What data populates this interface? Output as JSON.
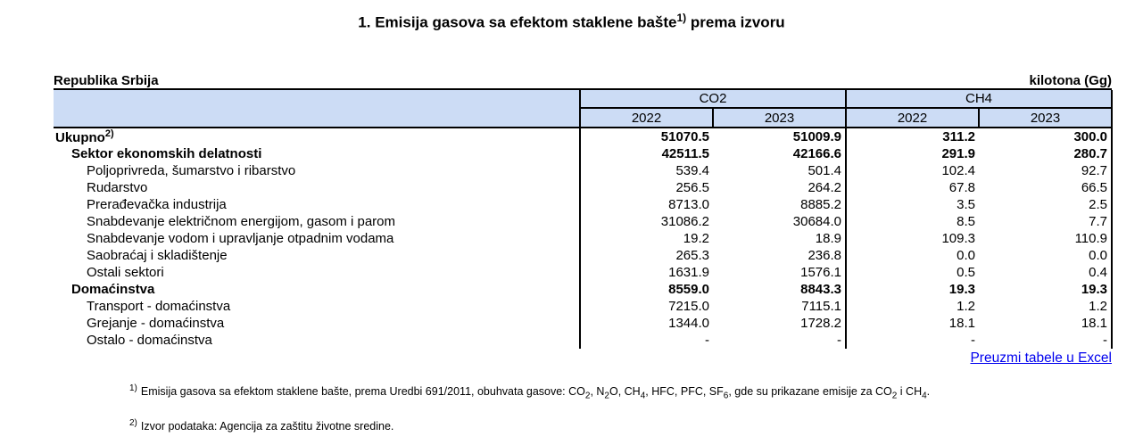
{
  "title": {
    "text": "1. Emisija gasova sa efektom staklene bašte",
    "sup": "1)",
    "suffix": " prema izvoru"
  },
  "colors": {
    "header_bg": "#ccdcf5",
    "link": "#0000ee",
    "border": "#000000"
  },
  "table": {
    "region_label": "Republika Srbija",
    "unit_label": "kilotona (Gg)",
    "groups": [
      {
        "label": "CO2",
        "years": [
          "2022",
          "2023"
        ]
      },
      {
        "label": "CH4",
        "years": [
          "2022",
          "2023"
        ]
      }
    ],
    "rows": [
      {
        "label": "Ukupno",
        "sup": "2)",
        "indent": 0,
        "bold": true,
        "values": [
          "51070.5",
          "51009.9",
          "311.2",
          "300.0"
        ]
      },
      {
        "label": "Sektor ekonomskih delatnosti",
        "indent": 1,
        "bold": true,
        "values": [
          "42511.5",
          "42166.6",
          "291.9",
          "280.7"
        ]
      },
      {
        "label": "Poljoprivreda, šumarstvo i ribarstvo",
        "indent": 2,
        "bold": false,
        "values": [
          "539.4",
          "501.4",
          "102.4",
          "92.7"
        ]
      },
      {
        "label": "Rudarstvo",
        "indent": 2,
        "bold": false,
        "values": [
          "256.5",
          "264.2",
          "67.8",
          "66.5"
        ]
      },
      {
        "label": "Prerađevačka industrija",
        "indent": 2,
        "bold": false,
        "values": [
          "8713.0",
          "8885.2",
          "3.5",
          "2.5"
        ]
      },
      {
        "label": "Snabdevanje električnom energijom, gasom i parom",
        "indent": 2,
        "bold": false,
        "values": [
          "31086.2",
          "30684.0",
          "8.5",
          "7.7"
        ]
      },
      {
        "label": "Snabdevanje vodom i upravljanje otpadnim vodama",
        "indent": 2,
        "bold": false,
        "values": [
          "19.2",
          "18.9",
          "109.3",
          "110.9"
        ]
      },
      {
        "label": "Saobraćaj i skladištenje",
        "indent": 2,
        "bold": false,
        "values": [
          "265.3",
          "236.8",
          "0.0",
          "0.0"
        ]
      },
      {
        "label": "Ostali sektori",
        "indent": 2,
        "bold": false,
        "values": [
          "1631.9",
          "1576.1",
          "0.5",
          "0.4"
        ]
      },
      {
        "label": "Domaćinstva",
        "indent": 1,
        "bold": true,
        "values": [
          "8559.0",
          "8843.3",
          "19.3",
          "19.3"
        ]
      },
      {
        "label": "Transport - domaćinstva",
        "indent": 2,
        "bold": false,
        "values": [
          "7215.0",
          "7115.1",
          "1.2",
          "1.2"
        ]
      },
      {
        "label": "Grejanje - domaćinstva",
        "indent": 2,
        "bold": false,
        "values": [
          "1344.0",
          "1728.2",
          "18.1",
          "18.1"
        ]
      },
      {
        "label": "Ostalo - domaćinstva",
        "indent": 2,
        "bold": false,
        "values": [
          "-",
          "-",
          "-",
          "-"
        ]
      }
    ]
  },
  "excel_link_label": "Preuzmi tabele u Excel",
  "footnotes": [
    {
      "marker": "1)",
      "segments": [
        {
          "t": "Emisija gasova sa efektom staklene bašte, prema Uredbi 691/2011, obuhvata gasove: CO"
        },
        {
          "sub": "2"
        },
        {
          "t": ", N"
        },
        {
          "sub": "2"
        },
        {
          "t": "O, CH"
        },
        {
          "sub": "4"
        },
        {
          "t": ", HFC, PFC, SF"
        },
        {
          "sub": "6"
        },
        {
          "t": ", gde su prikazane emisije za CO"
        },
        {
          "sub": "2"
        },
        {
          "t": " i CH"
        },
        {
          "sub": "4"
        },
        {
          "t": "."
        }
      ]
    },
    {
      "marker": "2)",
      "segments": [
        {
          "t": "Izvor podataka: Agencija za zaštitu životne sredine."
        }
      ]
    }
  ]
}
